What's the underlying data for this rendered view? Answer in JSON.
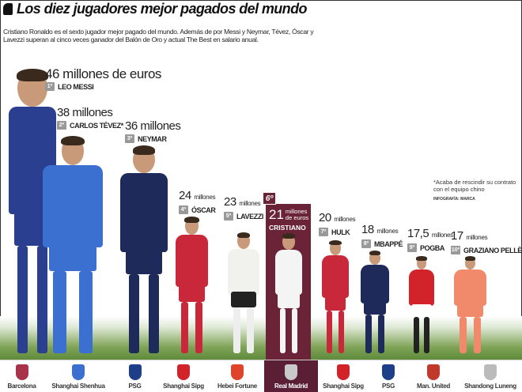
{
  "title": "Los diez jugadores mejor pagados del mundo",
  "intro": "Cristiano Ronaldo es el sexto jugador mejor pagado del mundo. Además de por Messi y Neymar, Tévez, Óscar y Lavezzi superan al cinco veces ganador del Balón de Oro y actual The Best en salario anual.",
  "note": "*Acaba de rescindir su contrato con el equipo chino",
  "credit": "INFOGRAFÍA: MARCA",
  "highlight_color": "#6b2338",
  "players": [
    {
      "rank": "1º",
      "name": "LEO MESSI",
      "salary": "46",
      "unit": "millones de euros",
      "club": "Barcelona",
      "salary_millions_eur": 46
    },
    {
      "rank": "2º",
      "name": "CARLOS TÉVEZ*",
      "salary": "38",
      "unit": "millones",
      "club": "Shanghai Shenhua",
      "salary_millions_eur": 38
    },
    {
      "rank": "3º",
      "name": "NEYMAR",
      "salary": "36",
      "unit": "millones",
      "club": "PSG",
      "salary_millions_eur": 36
    },
    {
      "rank": "4º",
      "name": "ÓSCAR",
      "salary": "24",
      "unit": "millones",
      "club": "Shanghai Sipg",
      "salary_millions_eur": 24
    },
    {
      "rank": "5º",
      "name": "LAVEZZI",
      "salary": "23",
      "unit": "millones",
      "club": "Hebei Fortune",
      "salary_millions_eur": 23
    },
    {
      "rank": "6º",
      "name": "CRISTIANO",
      "salary": "21",
      "unit": "millones de euros",
      "club": "Real Madrid",
      "salary_millions_eur": 21
    },
    {
      "rank": "7º",
      "name": "HULK",
      "salary": "20",
      "unit": "millones",
      "club": "Shanghai Sipg",
      "salary_millions_eur": 20
    },
    {
      "rank": "8º",
      "name": "MBAPPÉ",
      "salary": "18",
      "unit": "millones",
      "club": "PSG",
      "salary_millions_eur": 18
    },
    {
      "rank": "9º",
      "name": "POGBA",
      "salary": "17,5",
      "unit": "millones",
      "club": "Man. United",
      "salary_millions_eur": 17.5
    },
    {
      "rank": "10º",
      "name": "GRAZIANO PELLÈ",
      "salary": "17",
      "unit": "millones",
      "club": "Shandong Luneng",
      "salary_millions_eur": 17
    }
  ]
}
